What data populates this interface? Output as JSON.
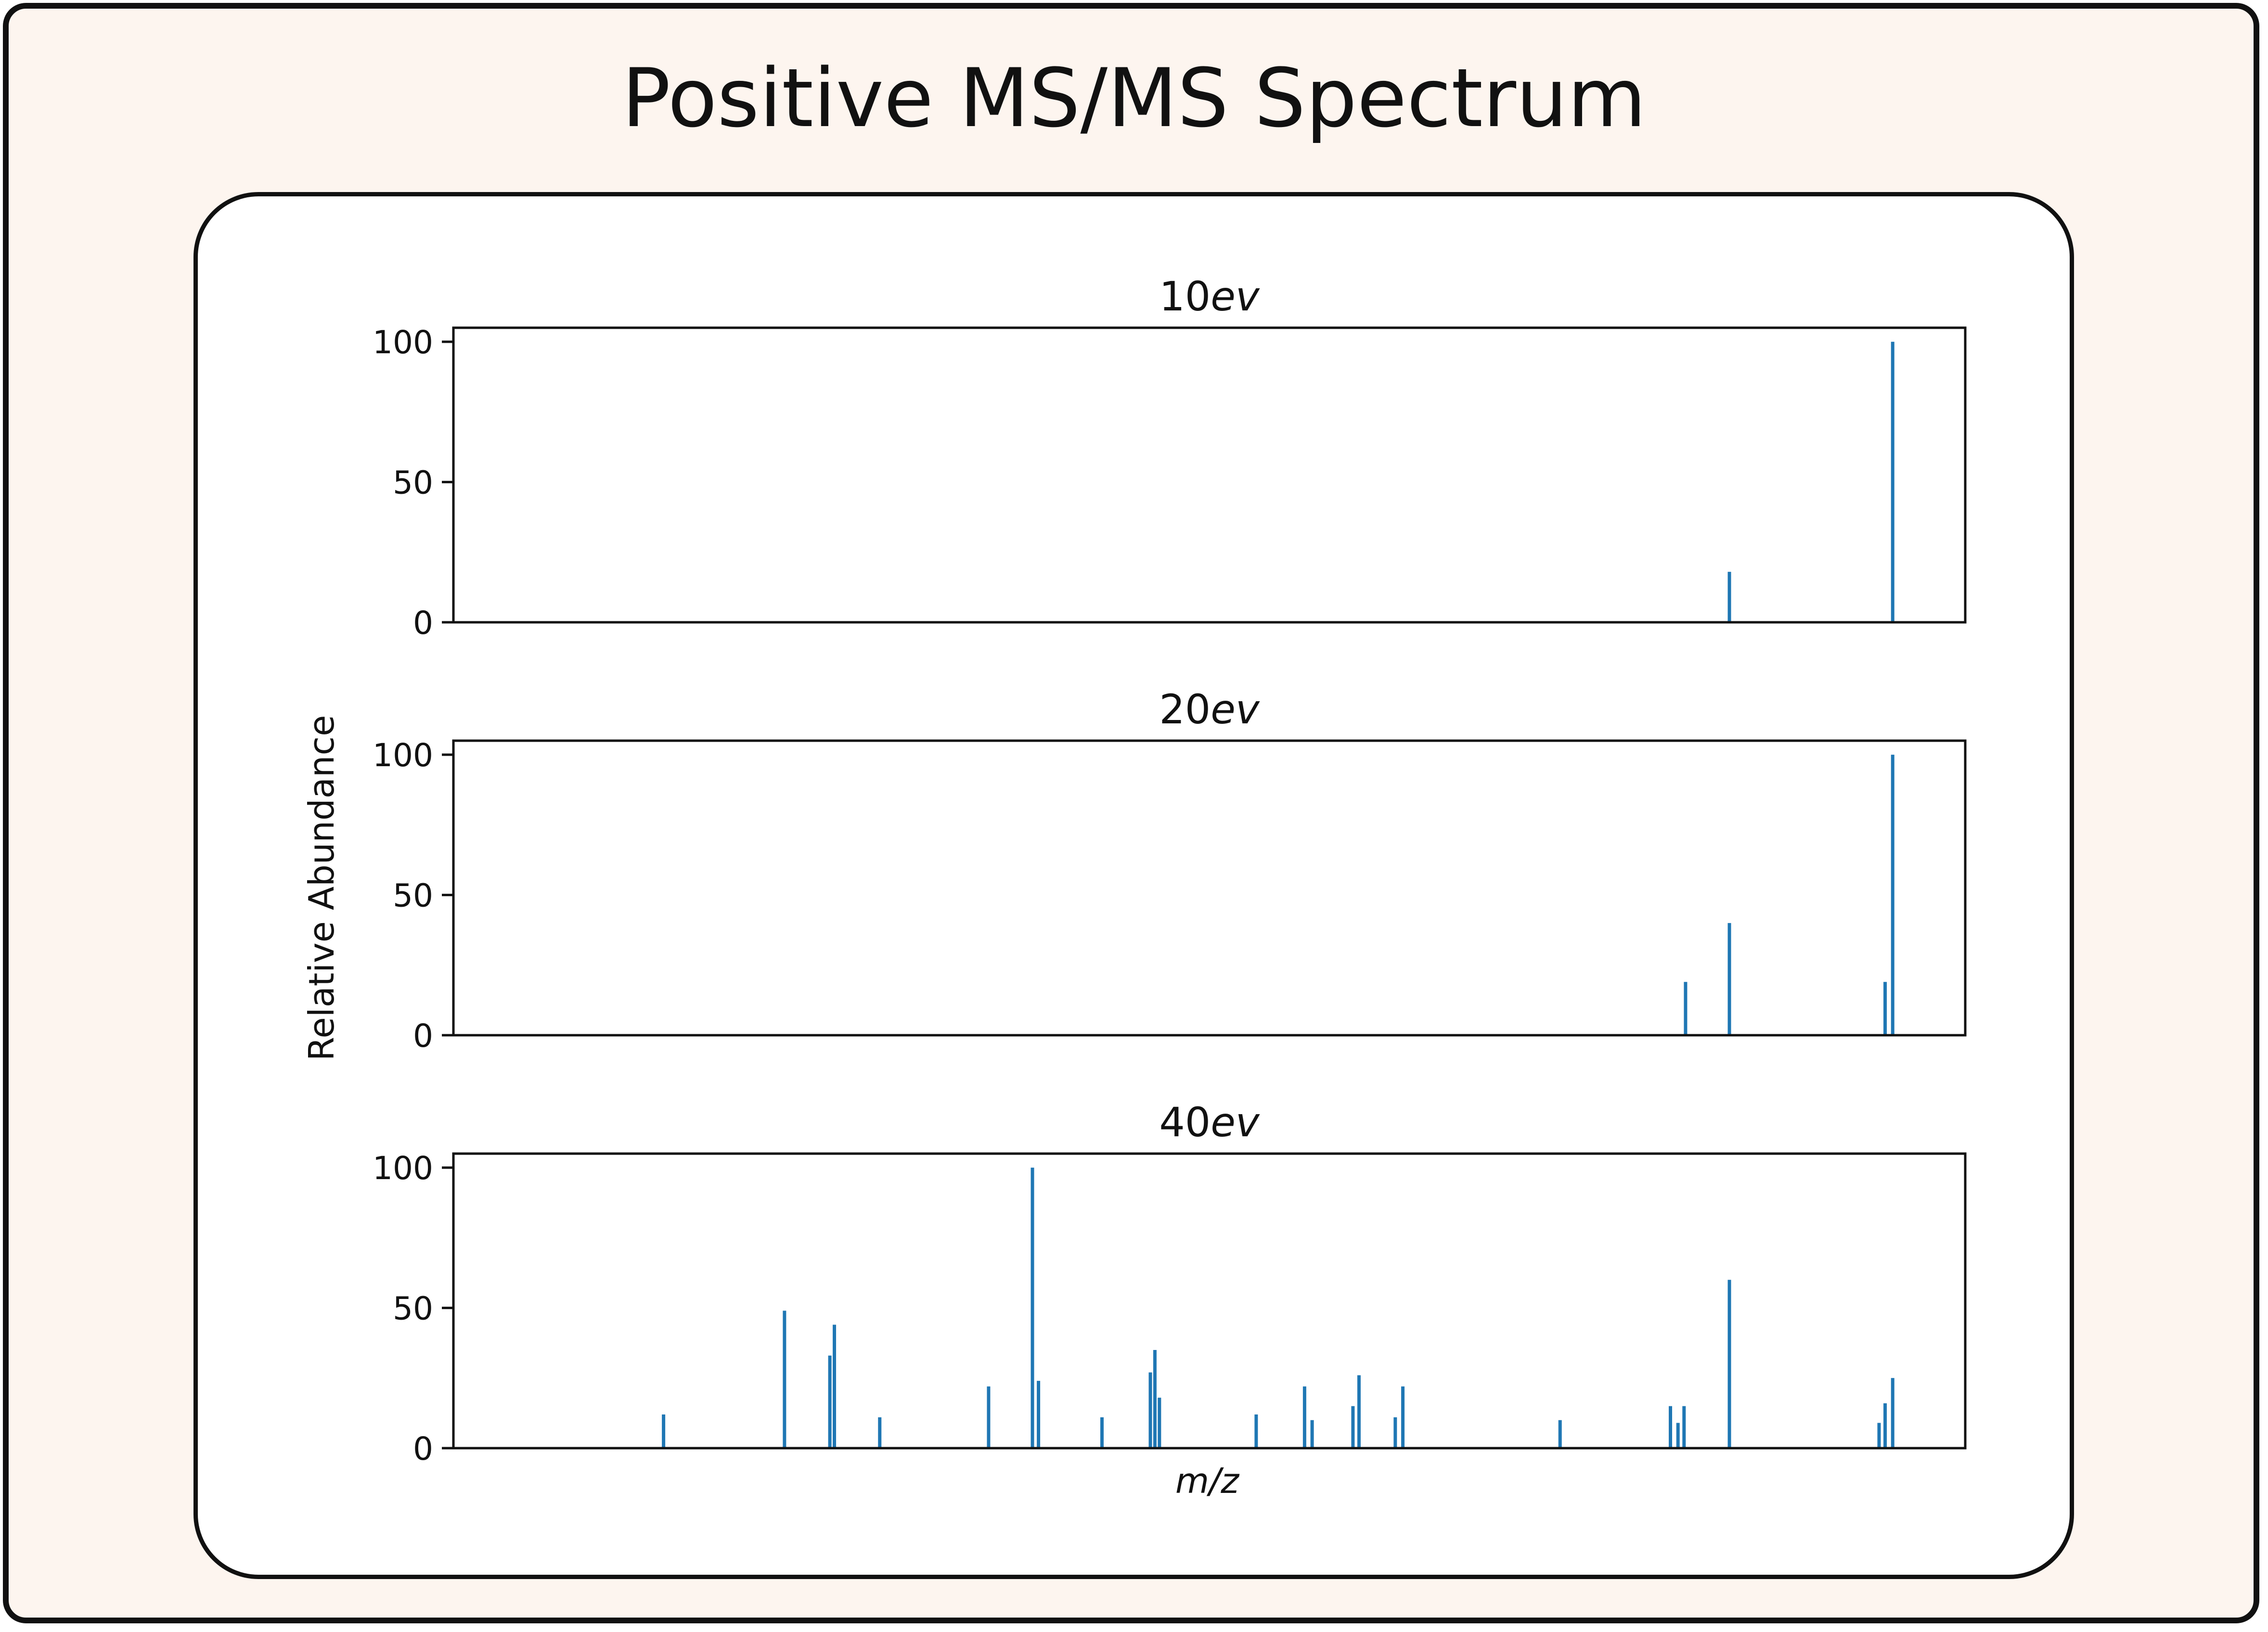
{
  "colors": {
    "frame_background": "#fdf5ef",
    "card_background": "#ffffff",
    "border": "#111111",
    "series": "#1f77b4"
  },
  "page": {
    "title": "Positive MS/MS Spectrum"
  },
  "chart_data": {
    "type": "bar",
    "title": "Positive MS/MS Spectrum",
    "ylabel": "Relative Abundance",
    "xlabel": "m/z",
    "xlim": [
      0,
      100
    ],
    "ylim": [
      0,
      105
    ],
    "yticks": [
      0,
      50,
      100
    ],
    "xticks_shown": false,
    "panels": [
      {
        "title_prefix": "10",
        "title_suffix": "ev",
        "peaks": [
          {
            "x": 84.4,
            "y": 18
          },
          {
            "x": 95.2,
            "y": 100
          }
        ]
      },
      {
        "title_prefix": "20",
        "title_suffix": "ev",
        "peaks": [
          {
            "x": 81.5,
            "y": 19
          },
          {
            "x": 84.4,
            "y": 40
          },
          {
            "x": 94.7,
            "y": 19
          },
          {
            "x": 95.2,
            "y": 100
          }
        ]
      },
      {
        "title_prefix": "40",
        "title_suffix": "ev",
        "peaks": [
          {
            "x": 13.9,
            "y": 12
          },
          {
            "x": 21.9,
            "y": 49
          },
          {
            "x": 24.9,
            "y": 33
          },
          {
            "x": 25.2,
            "y": 44
          },
          {
            "x": 28.2,
            "y": 11
          },
          {
            "x": 35.4,
            "y": 22
          },
          {
            "x": 38.3,
            "y": 100
          },
          {
            "x": 38.7,
            "y": 24
          },
          {
            "x": 42.9,
            "y": 11
          },
          {
            "x": 46.1,
            "y": 27
          },
          {
            "x": 46.4,
            "y": 35
          },
          {
            "x": 46.7,
            "y": 18
          },
          {
            "x": 53.1,
            "y": 12
          },
          {
            "x": 56.3,
            "y": 22
          },
          {
            "x": 56.8,
            "y": 10
          },
          {
            "x": 59.5,
            "y": 15
          },
          {
            "x": 59.9,
            "y": 26
          },
          {
            "x": 62.3,
            "y": 11
          },
          {
            "x": 62.8,
            "y": 22
          },
          {
            "x": 73.2,
            "y": 10
          },
          {
            "x": 80.5,
            "y": 15
          },
          {
            "x": 81.0,
            "y": 9
          },
          {
            "x": 81.4,
            "y": 15
          },
          {
            "x": 84.4,
            "y": 60
          },
          {
            "x": 94.3,
            "y": 9
          },
          {
            "x": 94.7,
            "y": 16
          },
          {
            "x": 95.2,
            "y": 25
          }
        ]
      }
    ]
  }
}
